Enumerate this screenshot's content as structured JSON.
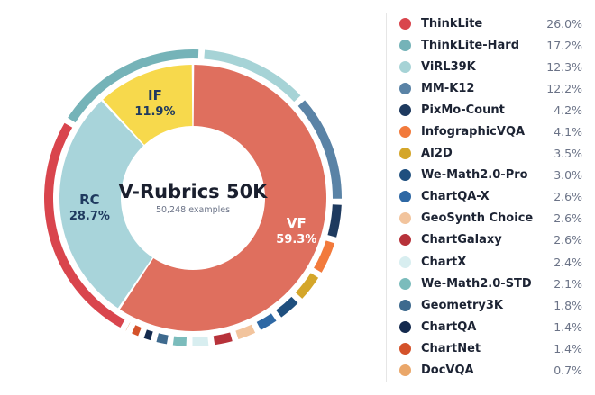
{
  "chart_data": {
    "type": "pie",
    "title": "V-Rubrics 50K",
    "subtitle": "50,248 examples",
    "inner": [
      {
        "label": "VF",
        "value": 59.3,
        "pct_label": "59.3%",
        "color": "#df6f5e",
        "text_color": "#ffffff"
      },
      {
        "label": "RC",
        "value": 28.7,
        "pct_label": "28.7%",
        "color": "#a8d4da",
        "text_color": "#1f3a5f"
      },
      {
        "label": "IF",
        "value": 11.9,
        "pct_label": "11.9%",
        "color": "#f7d94c",
        "text_color": "#1f3a5f"
      }
    ],
    "outer": [
      {
        "name": "ThinkLite",
        "value": 26.0,
        "label": "26.0%",
        "color": "#d9454d"
      },
      {
        "name": "ThinkLite-Hard",
        "value": 17.2,
        "label": "17.2%",
        "color": "#75b3b8"
      },
      {
        "name": "ViRL39K",
        "value": 12.3,
        "label": "12.3%",
        "color": "#a6d3d6"
      },
      {
        "name": "MM-K12",
        "value": 12.2,
        "label": "12.2%",
        "color": "#5a83a6"
      },
      {
        "name": "PixMo-Count",
        "value": 4.2,
        "label": "4.2%",
        "color": "#1e3a5f"
      },
      {
        "name": "InfographicVQA",
        "value": 4.1,
        "label": "4.1%",
        "color": "#f27a3c"
      },
      {
        "name": "AI2D",
        "value": 3.5,
        "label": "3.5%",
        "color": "#d4a62a"
      },
      {
        "name": "We-Math2.0-Pro",
        "value": 3.0,
        "label": "3.0%",
        "color": "#1f4f7e"
      },
      {
        "name": "ChartQA-X",
        "value": 2.6,
        "label": "2.6%",
        "color": "#2e68a4"
      },
      {
        "name": "GeoSynth Choice",
        "value": 2.6,
        "label": "2.6%",
        "color": "#f2c49d"
      },
      {
        "name": "ChartGalaxy",
        "value": 2.6,
        "label": "2.6%",
        "color": "#b7323a"
      },
      {
        "name": "ChartX",
        "value": 2.4,
        "label": "2.4%",
        "color": "#d8eef0"
      },
      {
        "name": "We-Math2.0-STD",
        "value": 2.1,
        "label": "2.1%",
        "color": "#7bbcbc"
      },
      {
        "name": "Geometry3K",
        "value": 1.8,
        "label": "1.8%",
        "color": "#3e6a8e"
      },
      {
        "name": "ChartQA",
        "value": 1.4,
        "label": "1.4%",
        "color": "#142a4e"
      },
      {
        "name": "ChartNet",
        "value": 1.4,
        "label": "1.4%",
        "color": "#d4522a"
      },
      {
        "name": "DocVQA",
        "value": 0.7,
        "label": "0.7%",
        "color": "#eaa76a"
      }
    ],
    "legend_placement": "right"
  }
}
